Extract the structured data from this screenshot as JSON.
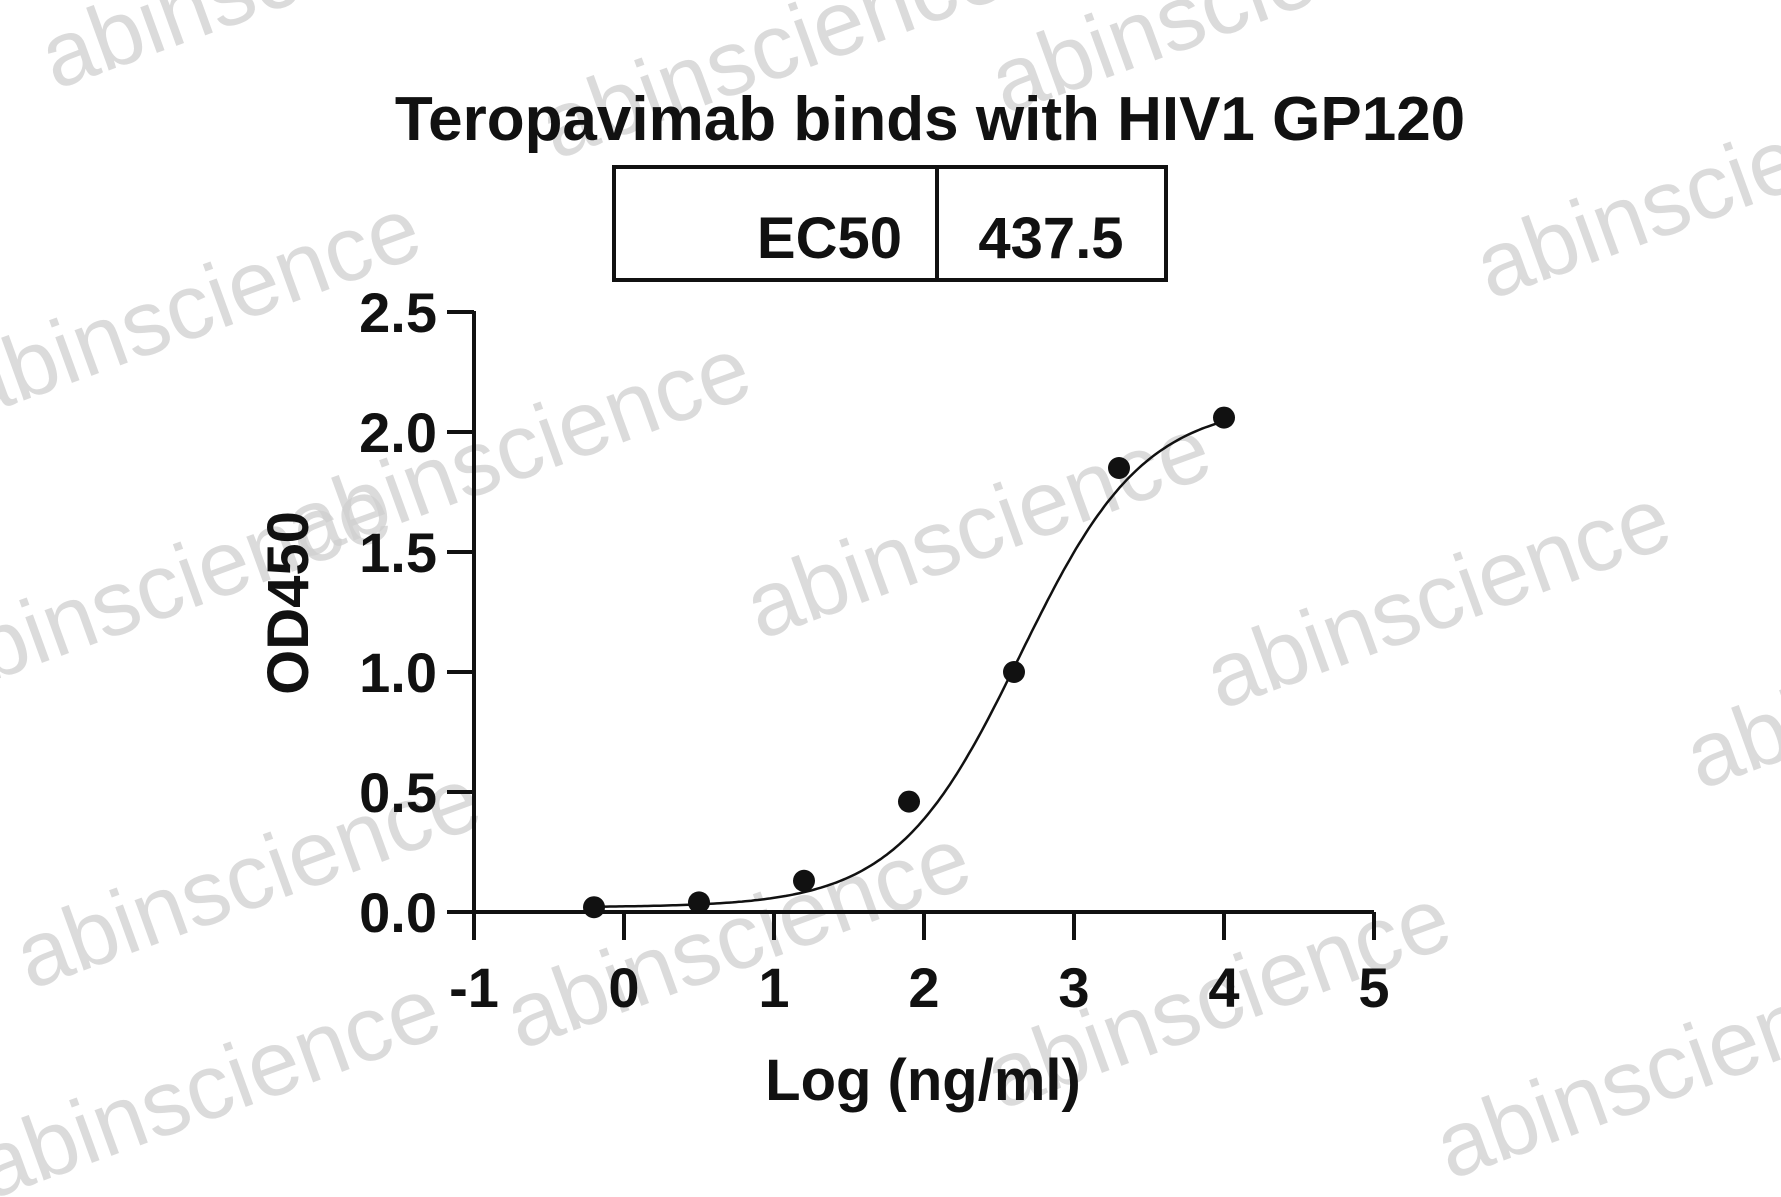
{
  "chart_data": {
    "type": "scatter",
    "title": "Teropavimab binds with HIV1 GP120",
    "xlabel": "Log (ng/ml)",
    "ylabel": "OD450",
    "xlim": [
      -1,
      5
    ],
    "ylim": [
      0,
      2.5
    ],
    "xticks": [
      "-1",
      "0",
      "1",
      "2",
      "3",
      "4",
      "5"
    ],
    "yticks": [
      "0.0",
      "0.5",
      "1.0",
      "1.5",
      "2.0",
      "2.5"
    ],
    "grid": false,
    "series": [
      {
        "x": [
          -0.2,
          0.5,
          1.2,
          1.9,
          2.6,
          3.3,
          4.0
        ],
        "y": [
          0.02,
          0.04,
          0.13,
          0.46,
          1.0,
          1.85,
          2.06
        ]
      }
    ],
    "fit_curve": {
      "bottom": 0.02,
      "top": 2.12,
      "log_ec50": 2.641,
      "hill": 1.05
    },
    "ec50_table": {
      "label": "EC50",
      "value": "437.5"
    },
    "watermark": "abinscience",
    "colors": {
      "marks": "#111111",
      "watermark": "#cfcfcf"
    }
  }
}
